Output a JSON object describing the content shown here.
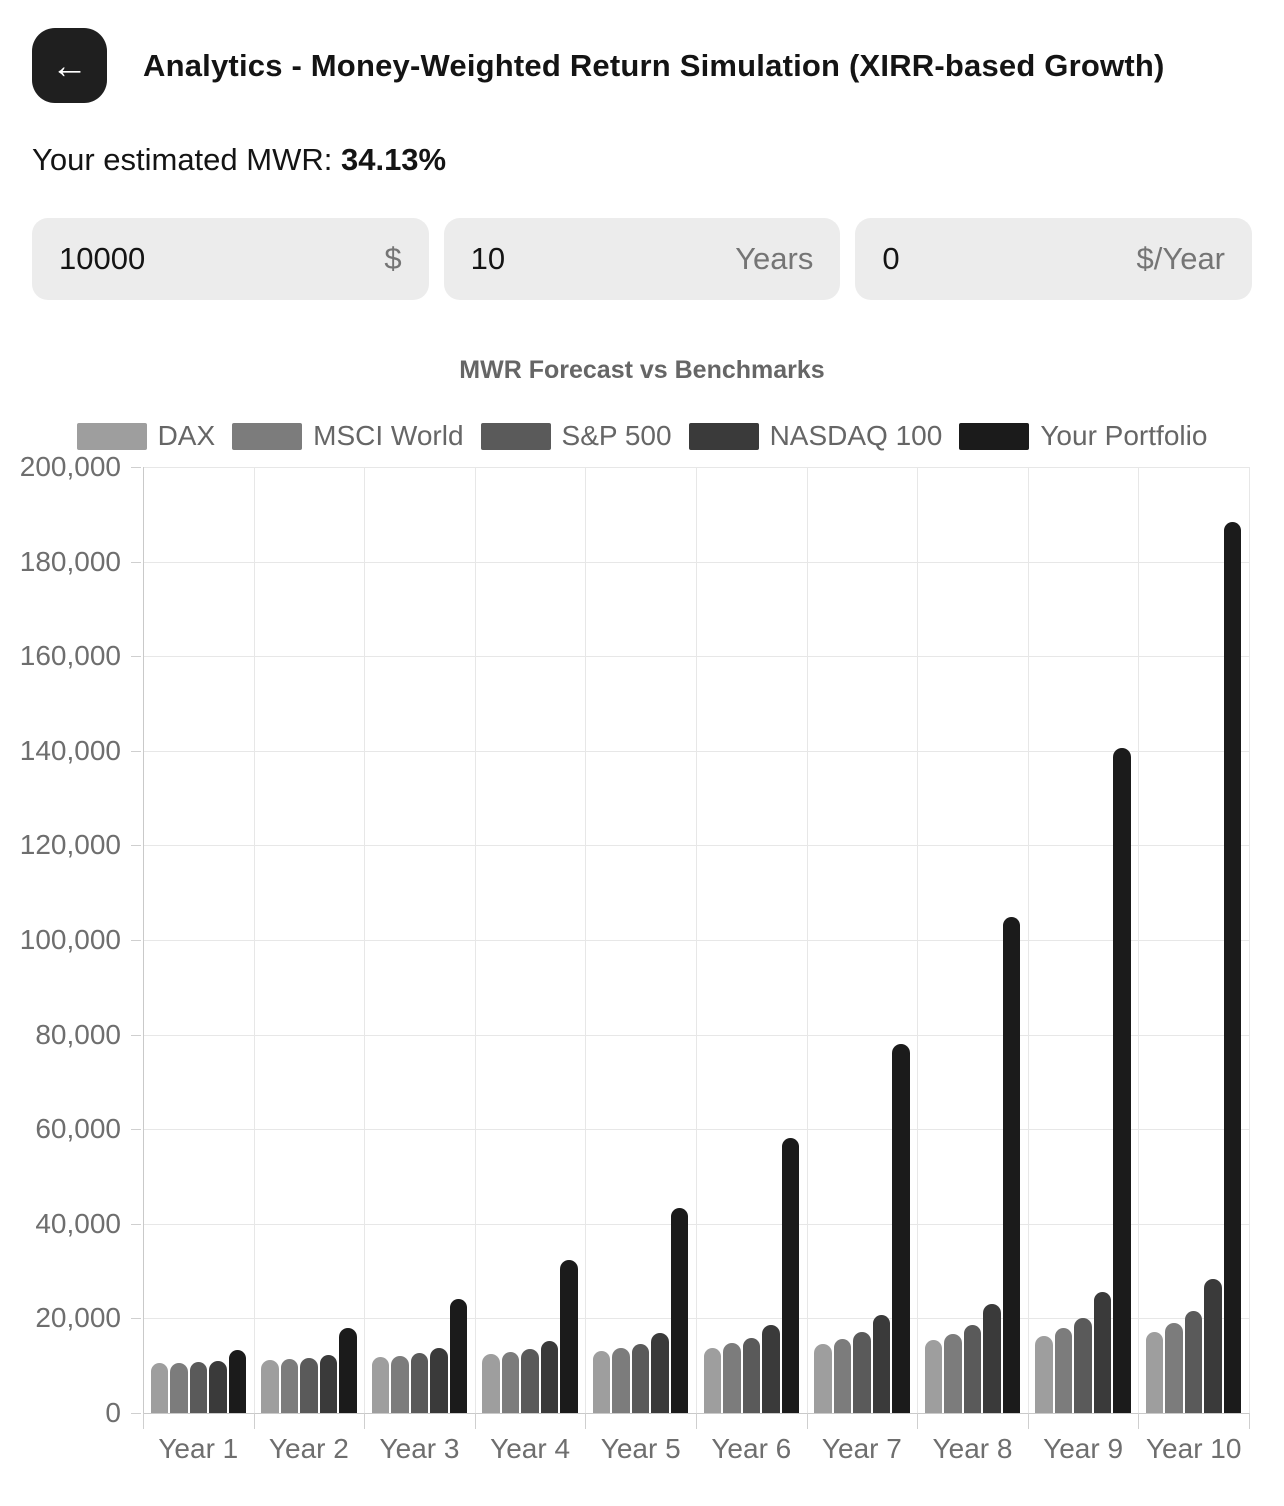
{
  "header": {
    "back_icon": "←",
    "title": "Analytics - Money-Weighted Return Simulation (XIRR-based Growth)"
  },
  "mwr": {
    "label": "Your estimated MWR:",
    "value": "34.13%"
  },
  "inputs": {
    "initial": {
      "value": "10000",
      "unit": "$"
    },
    "years": {
      "value": "10",
      "unit": "Years"
    },
    "contribution": {
      "value": "0",
      "unit": "$/Year"
    }
  },
  "chart_data": {
    "type": "bar",
    "title": "MWR Forecast vs Benchmarks",
    "categories": [
      "Year 1",
      "Year 2",
      "Year 3",
      "Year 4",
      "Year 5",
      "Year 6",
      "Year 7",
      "Year 8",
      "Year 9",
      "Year 10"
    ],
    "series": [
      {
        "name": "DAX",
        "color": "#9e9e9e",
        "values": [
          10550,
          11130,
          11742,
          12388,
          13070,
          13788,
          14547,
          15347,
          16191,
          17081
        ]
      },
      {
        "name": "MSCI World",
        "color": "#7c7c7c",
        "values": [
          10670,
          11385,
          12148,
          12962,
          13830,
          14757,
          15745,
          16800,
          17926,
          19127
        ]
      },
      {
        "name": "S&P 500",
        "color": "#5a5a5a",
        "values": [
          10800,
          11664,
          12597,
          13605,
          14693,
          15869,
          17138,
          18509,
          19990,
          21589
        ]
      },
      {
        "name": "NASDAQ 100",
        "color": "#3a3a3a",
        "values": [
          11100,
          12321,
          13676,
          15181,
          16851,
          18704,
          20762,
          23045,
          25580,
          28394
        ]
      },
      {
        "name": "Your Portfolio",
        "color": "#1b1b1b",
        "values": [
          13413,
          17991,
          24131,
          32367,
          43414,
          58231,
          78105,
          104763,
          140517,
          188476
        ]
      }
    ],
    "ylim": [
      0,
      200000
    ],
    "ytick_step": 20000,
    "grid": true,
    "legend_position": "top"
  }
}
